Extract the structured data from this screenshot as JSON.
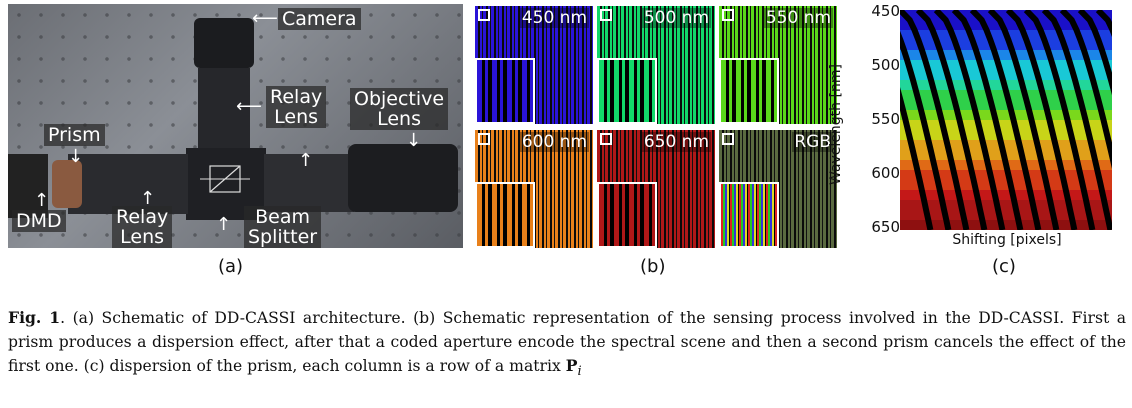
{
  "panel_a": {
    "labels": {
      "camera": "Camera",
      "relay_lens_top": "Relay\nLens",
      "objective_lens": "Objective\nLens",
      "prism": "Prism",
      "dmd": "DMD",
      "relay_lens_bottom": "Relay\nLens",
      "beam_splitter": "Beam\nSplitter"
    },
    "letter": "(a)"
  },
  "panel_b": {
    "tiles": [
      {
        "label": "450 nm",
        "color": "#2a14d8"
      },
      {
        "label": "500 nm",
        "color": "#12d86a"
      },
      {
        "label": "550 nm",
        "color": "#5ad81a"
      },
      {
        "label": "600 nm",
        "color": "#e8801a"
      },
      {
        "label": "650 nm",
        "color": "#b01818"
      },
      {
        "label": "RGB",
        "color": "#5a6a40"
      }
    ],
    "letter": "(b)"
  },
  "panel_c": {
    "ylabel": "Wavelength [nm]",
    "xlabel": "Shifting [pixels]",
    "yticks": [
      "450",
      "500",
      "550",
      "600",
      "650"
    ],
    "letter": "(c)"
  },
  "caption": {
    "fig_label": "Fig. 1",
    "text": ". (a) Schematic of DD-CASSI architecture. (b) Schematic representation of the sensing process involved in the DD-CASSI. First a prism produces a dispersion effect, after that a coded aperture encode the spectral scene and then a second prism cancels the effect of the first one. (c) dispersion of the prism, each column is a row of a matrix ",
    "matrix_symbol": "P",
    "matrix_subscript": "i"
  }
}
